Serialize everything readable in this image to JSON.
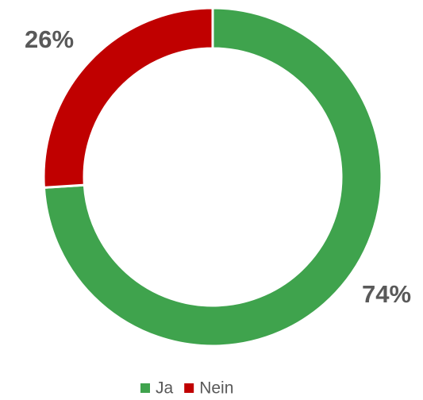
{
  "chart_data": {
    "type": "donut",
    "categories": [
      "Ja",
      "Nein"
    ],
    "values": [
      74,
      26
    ],
    "value_labels": [
      "74%",
      "26%"
    ],
    "colors": [
      "#3fa34d",
      "#c00000"
    ],
    "legend": "bottom"
  }
}
